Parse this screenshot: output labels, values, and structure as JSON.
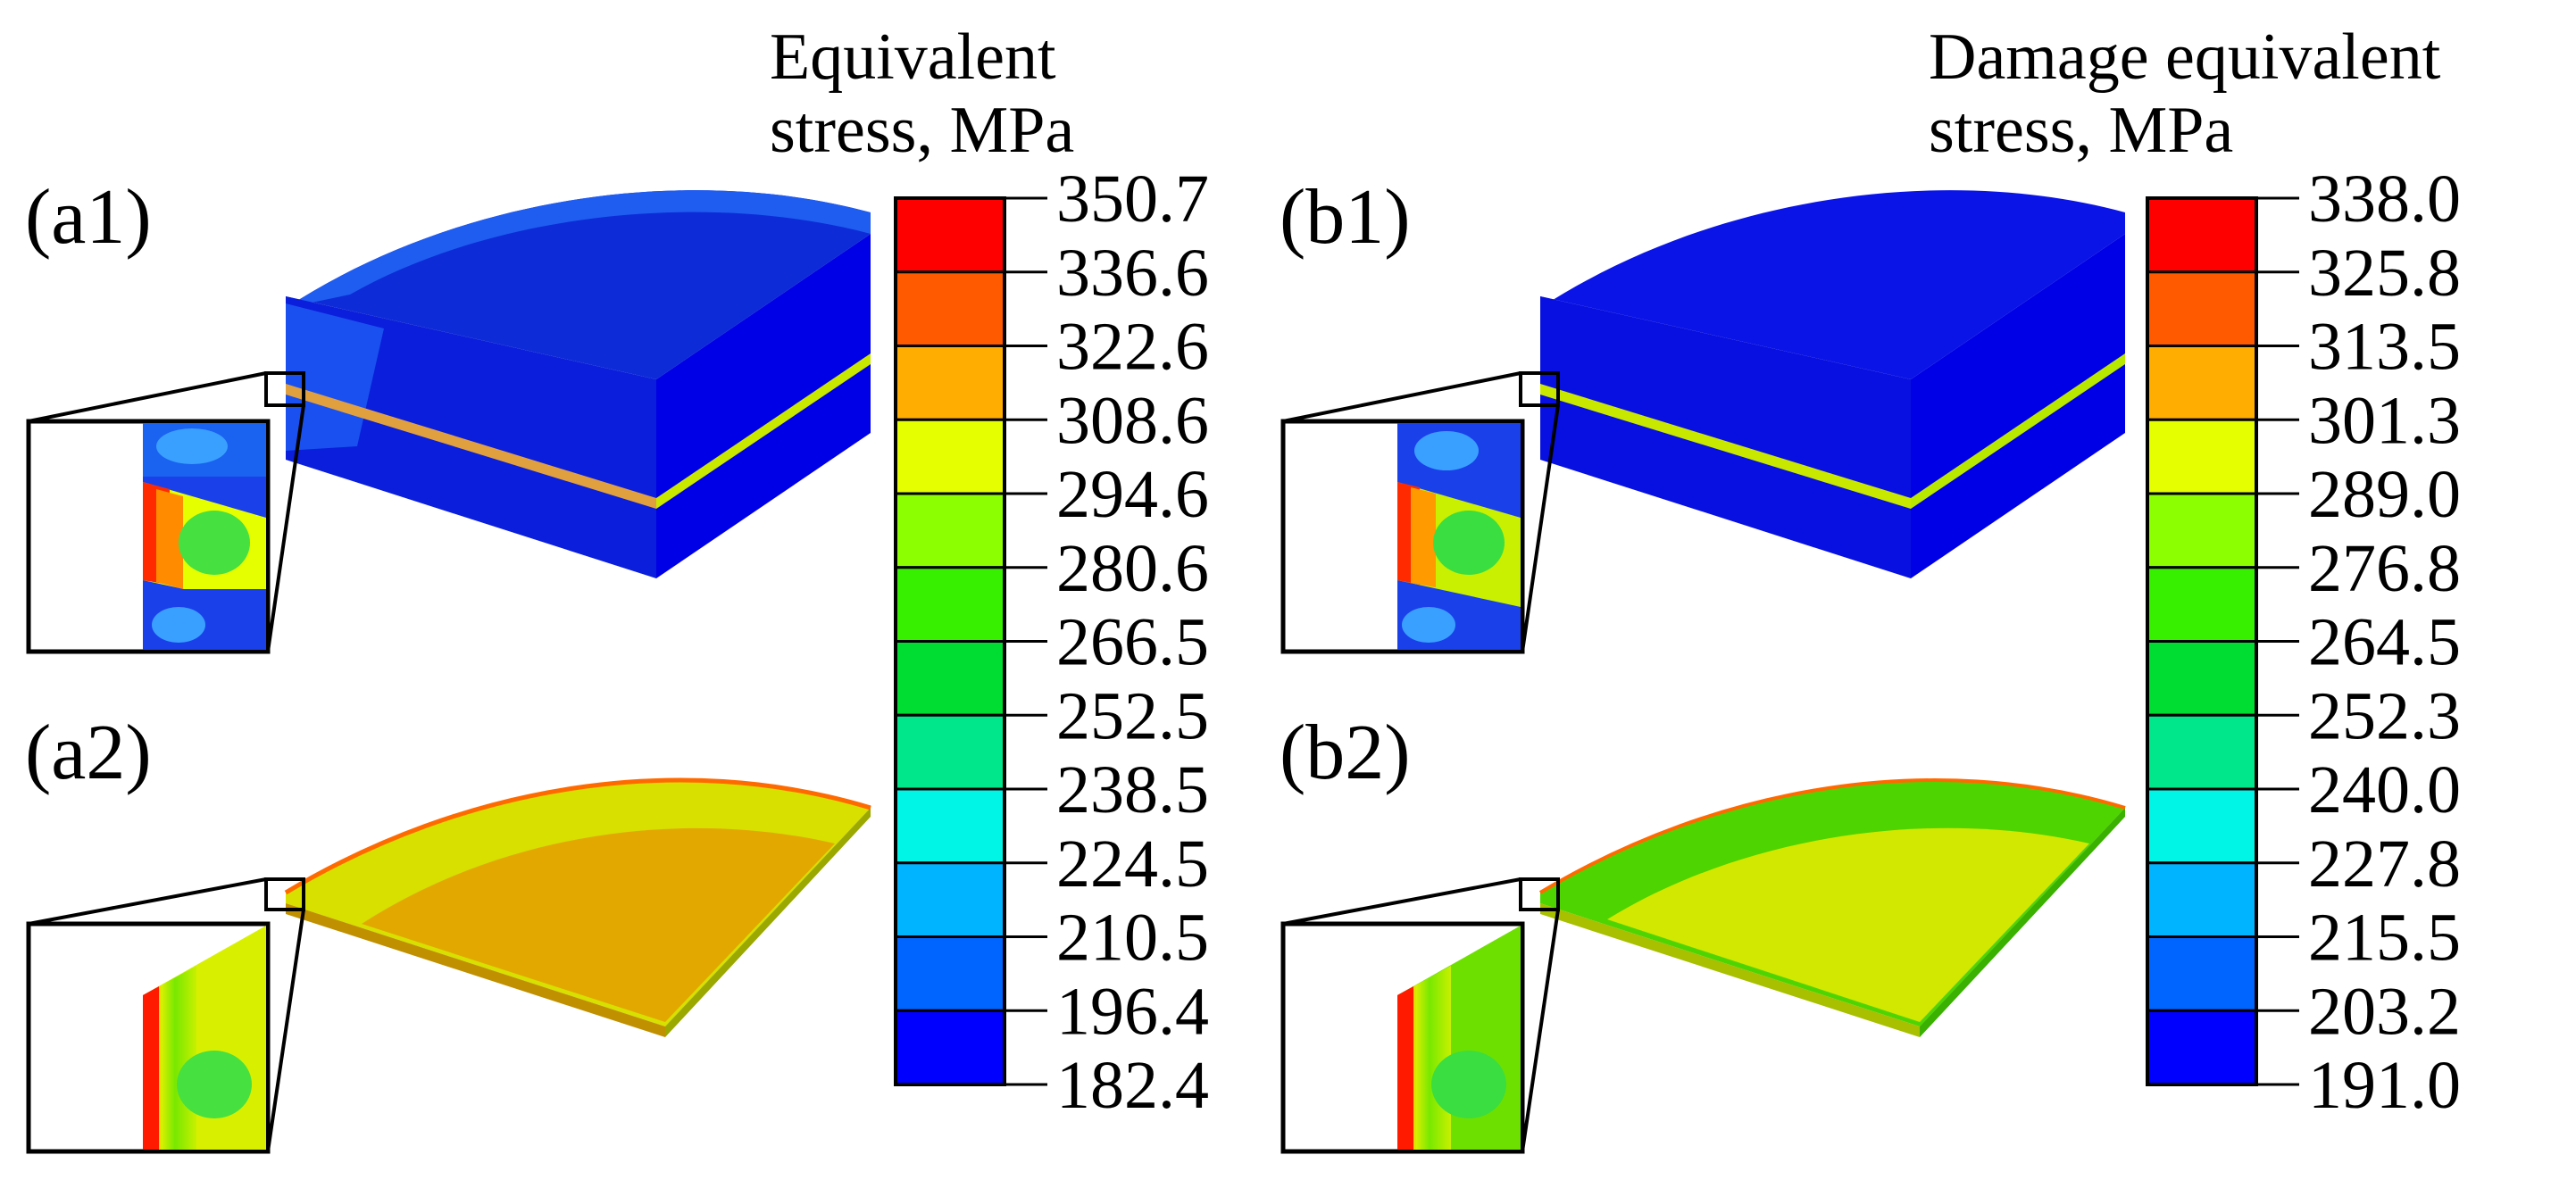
{
  "panels": {
    "a1": "(a1)",
    "a2": "(a2)",
    "b1": "(b1)",
    "b2": "(b2)"
  },
  "legend_a": {
    "title_line1": "Equivalent",
    "title_line2": "stress, MPa",
    "ticks": [
      "350.7",
      "336.6",
      "322.6",
      "308.6",
      "294.6",
      "280.6",
      "266.5",
      "252.5",
      "238.5",
      "224.5",
      "210.5",
      "196.4",
      "182.4"
    ]
  },
  "legend_b": {
    "title_line1": "Damage equivalent",
    "title_line2": "stress, MPa",
    "ticks": [
      "338.0",
      "325.8",
      "313.5",
      "301.3",
      "289.0",
      "276.8",
      "264.5",
      "252.3",
      "240.0",
      "227.8",
      "215.5",
      "203.2",
      "191.0"
    ]
  },
  "colors": {
    "scale": [
      "#ff0000",
      "#ff5a00",
      "#ffad00",
      "#e6ff00",
      "#8cff00",
      "#36f000",
      "#00dd32",
      "#00e68a",
      "#00f5e6",
      "#00b4ff",
      "#0064ff",
      "#0000ff"
    ],
    "outline": "#000000"
  }
}
